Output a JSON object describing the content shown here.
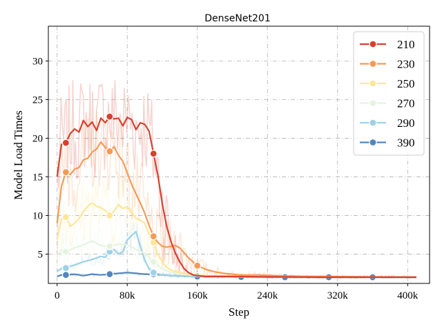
{
  "chart_data": {
    "type": "line",
    "title": "DenseNet201",
    "xlabel": "Step",
    "ylabel": "Model Load Times",
    "xlim": [
      -10000,
      425000
    ],
    "ylim": [
      1.2,
      34.5
    ],
    "xticks": [
      0,
      80000,
      160000,
      240000,
      320000,
      400000
    ],
    "xtick_labels": [
      "0",
      "80k",
      "160k",
      "240k",
      "320k",
      "400k"
    ],
    "yticks": [
      5,
      10,
      15,
      20,
      25,
      30
    ],
    "ytick_labels": [
      "5",
      "10",
      "15",
      "20",
      "25",
      "30"
    ],
    "grid": true,
    "legend_position": "top-right",
    "series": [
      {
        "name": "210",
        "color": "#d7402e",
        "x": [
          0,
          5000,
          10000,
          15000,
          20000,
          25000,
          30000,
          35000,
          40000,
          45000,
          50000,
          55000,
          60000,
          65000,
          70000,
          75000,
          80000,
          85000,
          90000,
          95000,
          100000,
          105000,
          110000,
          115000,
          120000,
          125000,
          130000,
          135000,
          140000,
          145000,
          150000,
          155000,
          160000,
          170000,
          180000,
          200000,
          250000,
          300000,
          350000,
          410000
        ],
        "y": [
          15.0,
          19.2,
          19.4,
          20.6,
          21.2,
          20.8,
          22.3,
          21.5,
          22.1,
          21.0,
          22.6,
          22.0,
          22.8,
          22.5,
          22.6,
          21.6,
          22.7,
          22.4,
          21.1,
          22.0,
          21.8,
          20.9,
          18.0,
          15.2,
          11.5,
          8.6,
          6.6,
          5.1,
          4.0,
          3.1,
          2.6,
          2.3,
          2.2,
          2.1,
          2.1,
          2.1,
          2.05,
          2.0,
          2.0,
          2.0
        ],
        "markers_x": [
          10000,
          60000,
          110000
        ]
      },
      {
        "name": "230",
        "color": "#f59a55",
        "x": [
          0,
          5000,
          10000,
          15000,
          20000,
          25000,
          30000,
          35000,
          40000,
          45000,
          50000,
          55000,
          60000,
          65000,
          70000,
          75000,
          80000,
          85000,
          90000,
          95000,
          100000,
          105000,
          110000,
          115000,
          120000,
          125000,
          130000,
          135000,
          140000,
          150000,
          160000,
          170000,
          180000,
          190000,
          200000,
          210000,
          230000,
          250000,
          280000,
          310000,
          350000,
          410000
        ],
        "y": [
          9.0,
          13.8,
          15.6,
          15.3,
          16.0,
          16.2,
          17.2,
          17.4,
          18.2,
          18.6,
          19.5,
          18.8,
          18.3,
          18.9,
          17.8,
          17.0,
          15.5,
          14.0,
          12.8,
          11.6,
          10.3,
          8.7,
          7.3,
          6.5,
          6.0,
          5.9,
          6.0,
          6.1,
          5.8,
          4.5,
          3.5,
          3.0,
          2.7,
          2.5,
          2.4,
          2.3,
          2.3,
          2.2,
          2.1,
          2.1,
          2.05,
          2.0
        ],
        "markers_x": [
          10000,
          60000,
          110000,
          160000
        ]
      },
      {
        "name": "250",
        "color": "#fde699",
        "x": [
          0,
          5000,
          10000,
          15000,
          20000,
          25000,
          30000,
          35000,
          40000,
          45000,
          50000,
          55000,
          60000,
          65000,
          70000,
          75000,
          80000,
          85000,
          90000,
          95000,
          100000,
          105000,
          110000,
          115000,
          120000,
          125000,
          130000,
          140000,
          150000,
          160000,
          180000,
          200000,
          250000,
          300000,
          350000,
          410000
        ],
        "y": [
          7.0,
          9.5,
          9.8,
          8.6,
          9.0,
          9.6,
          10.5,
          11.2,
          11.6,
          11.2,
          11.0,
          10.6,
          10.0,
          10.6,
          11.4,
          10.9,
          11.1,
          10.4,
          9.6,
          9.4,
          9.0,
          7.6,
          6.5,
          5.0,
          4.0,
          3.3,
          2.9,
          2.6,
          2.4,
          2.3,
          2.2,
          2.1,
          2.05,
          2.0,
          2.0,
          2.0
        ],
        "markers_x": [
          10000,
          60000,
          110000
        ]
      },
      {
        "name": "270",
        "color": "#e5f4e0",
        "x": [
          0,
          5000,
          10000,
          20000,
          30000,
          40000,
          50000,
          60000,
          70000,
          80000,
          90000,
          100000,
          110000,
          120000,
          130000,
          150000,
          180000,
          250000,
          350000,
          410000
        ],
        "y": [
          4.8,
          5.5,
          5.3,
          5.8,
          6.2,
          6.7,
          6.1,
          6.0,
          6.3,
          6.2,
          5.6,
          5.1,
          4.0,
          3.1,
          2.6,
          2.3,
          2.2,
          2.1,
          2.0,
          2.0
        ],
        "markers_x": [
          10000,
          60000,
          110000
        ]
      },
      {
        "name": "290",
        "color": "#9fd1e6",
        "x": [
          0,
          5000,
          10000,
          20000,
          30000,
          40000,
          50000,
          55000,
          60000,
          65000,
          70000,
          75000,
          80000,
          85000,
          90000,
          95000,
          100000,
          105000,
          110000,
          120000,
          130000,
          150000,
          200000,
          300000,
          410000
        ],
        "y": [
          2.8,
          3.1,
          3.2,
          3.6,
          4.0,
          4.3,
          4.7,
          4.6,
          5.3,
          5.6,
          5.0,
          5.3,
          6.8,
          7.4,
          7.9,
          6.0,
          4.2,
          3.1,
          2.6,
          2.3,
          2.2,
          2.1,
          2.05,
          2.0,
          2.0
        ],
        "markers_x": [
          10000,
          60000,
          110000
        ]
      },
      {
        "name": "390",
        "color": "#5386bc",
        "x": [
          0,
          5000,
          10000,
          20000,
          30000,
          40000,
          50000,
          60000,
          70000,
          80000,
          90000,
          100000,
          110000,
          120000,
          130000,
          150000,
          200000,
          250000,
          300000,
          350000,
          410000
        ],
        "y": [
          2.1,
          2.3,
          2.3,
          2.4,
          2.2,
          2.4,
          2.3,
          2.4,
          2.5,
          2.6,
          2.5,
          2.4,
          2.4,
          2.3,
          2.2,
          2.1,
          2.05,
          2.0,
          2.0,
          2.0,
          2.0
        ],
        "markers_x": [
          10000,
          60000,
          110000,
          160000,
          210000,
          260000,
          310000,
          360000
        ]
      }
    ]
  }
}
